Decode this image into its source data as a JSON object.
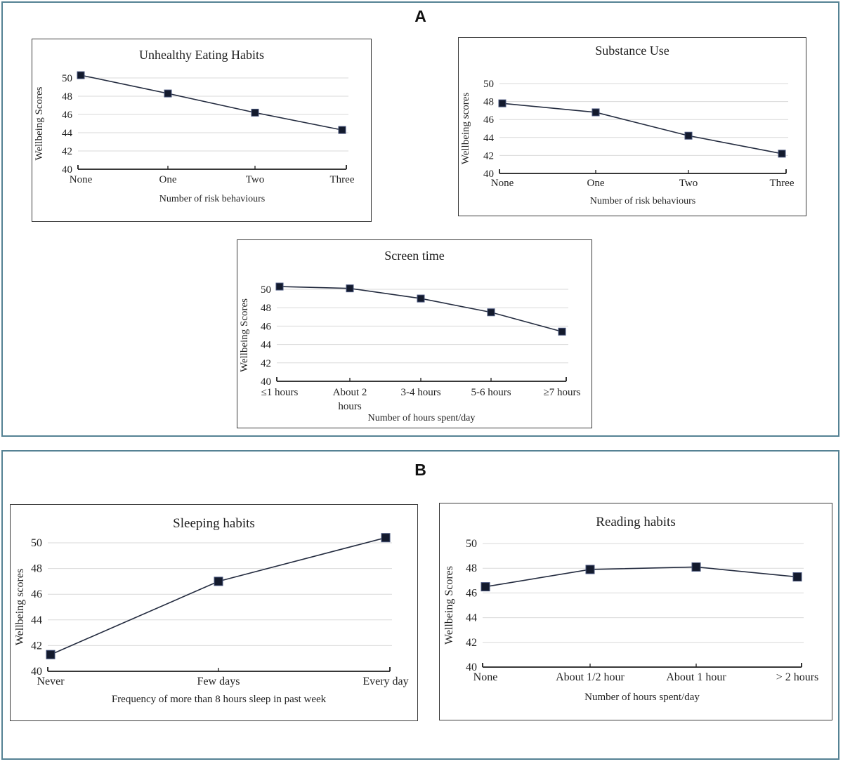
{
  "figure": {
    "panels": [
      {
        "id": "A",
        "label": "A"
      },
      {
        "id": "B",
        "label": "B"
      }
    ]
  },
  "colors": {
    "panel_border": "#558294",
    "chart_border": "#3a3a3a",
    "grid": "#d9d9d9",
    "axis": "#1c1c1c",
    "line": "#232b3f",
    "marker": "#131a2d",
    "marker_edge": "#47547b",
    "text": "#1f1f1f"
  },
  "chart_data": [
    {
      "id": "unhealthy-eating-habits",
      "panel": "A",
      "type": "line",
      "title": "Unhealthy Eating Habits",
      "xlabel": "Number of risk behaviours",
      "ylabel": "Wellbeing Scores",
      "categories": [
        "None",
        "One",
        "Two",
        "Three"
      ],
      "values": [
        50.3,
        48.3,
        46.2,
        44.3
      ],
      "ylim": [
        40,
        51.5
      ],
      "yticks": [
        40,
        42,
        44,
        46,
        48,
        50
      ],
      "grid": "horizontal",
      "legend": "none",
      "marker": "filled-square"
    },
    {
      "id": "substance-use",
      "panel": "A",
      "type": "line",
      "title": "Substance Use",
      "xlabel": "Number of risk behaviours",
      "ylabel": "Wellbeing scores",
      "categories": [
        "None",
        "One",
        "Two",
        "Three"
      ],
      "values": [
        47.8,
        46.8,
        44.2,
        42.2
      ],
      "ylim": [
        40,
        51.5
      ],
      "yticks": [
        40,
        42,
        44,
        46,
        48,
        50
      ],
      "grid": "horizontal",
      "legend": "none",
      "marker": "filled-square"
    },
    {
      "id": "screen-time",
      "panel": "A",
      "type": "line",
      "title": "Screen time",
      "xlabel": "Number of hours spent/day",
      "ylabel": "Wellbeing Scores",
      "categories": [
        "≤1 hours",
        "About 2\nhours",
        "3-4 hours",
        "5-6 hours",
        "≥7 hours"
      ],
      "values": [
        50.3,
        50.1,
        49.0,
        47.5,
        45.4
      ],
      "ylim": [
        40,
        51.5
      ],
      "yticks": [
        40,
        42,
        44,
        46,
        48,
        50
      ],
      "grid": "horizontal",
      "legend": "none",
      "marker": "filled-square"
    },
    {
      "id": "sleeping-habits",
      "panel": "B",
      "type": "line",
      "title": "Sleeping habits",
      "xlabel": "Frequency of more than 8 hours sleep in past week",
      "ylabel": "Wellbeing scores",
      "categories": [
        "Never",
        "Few days",
        "Every day"
      ],
      "values": [
        41.3,
        47.0,
        50.4
      ],
      "ylim": [
        40,
        51.2
      ],
      "yticks": [
        40,
        42,
        44,
        46,
        48,
        50
      ],
      "grid": "horizontal",
      "legend": "none",
      "marker": "filled-square"
    },
    {
      "id": "reading-habits",
      "panel": "B",
      "type": "line",
      "title": "Reading habits",
      "xlabel": "Number of hours spent/day",
      "ylabel": "Wellbeing Scores",
      "categories": [
        "None",
        "About 1/2 hour",
        "About 1 hour",
        "> 2 hours"
      ],
      "values": [
        46.5,
        47.9,
        48.1,
        47.3
      ],
      "ylim": [
        40,
        51.2
      ],
      "yticks": [
        40,
        42,
        44,
        46,
        48,
        50
      ],
      "grid": "horizontal",
      "legend": "none",
      "marker": "filled-square"
    }
  ]
}
